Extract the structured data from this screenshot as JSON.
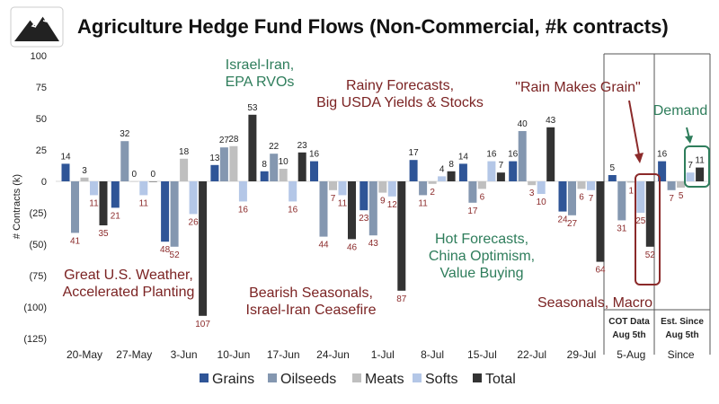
{
  "chart_data": {
    "type": "bar",
    "title": "Agriculture Hedge Fund Flows (Non-Commercial, #k contracts)",
    "ylabel": "# Contracts (k)",
    "xlabel": "",
    "ylim": [
      -125,
      100
    ],
    "yticks": [
      100,
      75,
      50,
      25,
      0,
      -25,
      -50,
      -75,
      -100,
      -125
    ],
    "ytick_labels": [
      "100",
      "75",
      "50",
      "25",
      "0",
      "(25)",
      "(50)",
      "(75)",
      "(100)",
      "(125)"
    ],
    "categories": [
      "20-May",
      "27-May",
      "3-Jun",
      "10-Jun",
      "17-Jun",
      "24-Jun",
      "1-Jul",
      "8-Jul",
      "15-Jul",
      "22-Jul",
      "29-Jul",
      "5-Aug",
      "Since"
    ],
    "series": [
      {
        "name": "Grains",
        "color": "#2f5597",
        "values": [
          14,
          -21,
          -48,
          13,
          8,
          16,
          -23,
          17,
          14,
          16,
          -24,
          5,
          16
        ]
      },
      {
        "name": "Oilseeds",
        "color": "#8497b0",
        "values": [
          -41,
          32,
          -52,
          27,
          22,
          -44,
          -43,
          -11,
          -17,
          40,
          -27,
          -31,
          -7
        ]
      },
      {
        "name": "Meats",
        "color": "#bfbfbf",
        "values": [
          3,
          0,
          18,
          28,
          10,
          -7,
          -9,
          -2,
          -6,
          -3,
          -6,
          -1,
          -5
        ]
      },
      {
        "name": "Softs",
        "color": "#b4c7e7",
        "values": [
          -11,
          -11,
          -26,
          -16,
          -16,
          -11,
          -12,
          4,
          16,
          -10,
          -7,
          -25,
          7
        ]
      },
      {
        "name": "Total",
        "color": "#333333",
        "values": [
          -35,
          0,
          -107,
          53,
          23,
          -46,
          -87,
          8,
          7,
          43,
          -64,
          -52,
          11
        ]
      }
    ],
    "legend_placement": "bottom",
    "grid": false,
    "positive_label_color": "#222222",
    "negative_label_color": "#8b2a2a",
    "annotations": [
      {
        "text": [
          "Great U.S. Weather,",
          "Accelerated Planting"
        ],
        "color": "#7b2323"
      },
      {
        "text": [
          "Israel-Iran,",
          "EPA RVOs"
        ],
        "color": "#2e7d5b"
      },
      {
        "text": [
          "Bearish Seasonals,",
          "Israel-Iran Ceasefire"
        ],
        "color": "#7b2323"
      },
      {
        "text": [
          "Rainy Forecasts,",
          "Big USDA Yields & Stocks"
        ],
        "color": "#7b2323"
      },
      {
        "text": [
          "Hot Forecasts,",
          "China Optimism,",
          "Value Buying"
        ],
        "color": "#2e7d5b"
      },
      {
        "text": [
          "\"Rain Makes Grain\""
        ],
        "color": "#7b2323"
      },
      {
        "text": [
          "Seasonals, Macro"
        ],
        "color": "#7b2323"
      },
      {
        "text": [
          "Demand"
        ],
        "color": "#2e7d5b"
      }
    ],
    "section_labels": [
      [
        "COT Data",
        "Aug 5th"
      ],
      [
        "Est. Since",
        "Aug 5th"
      ]
    ]
  }
}
